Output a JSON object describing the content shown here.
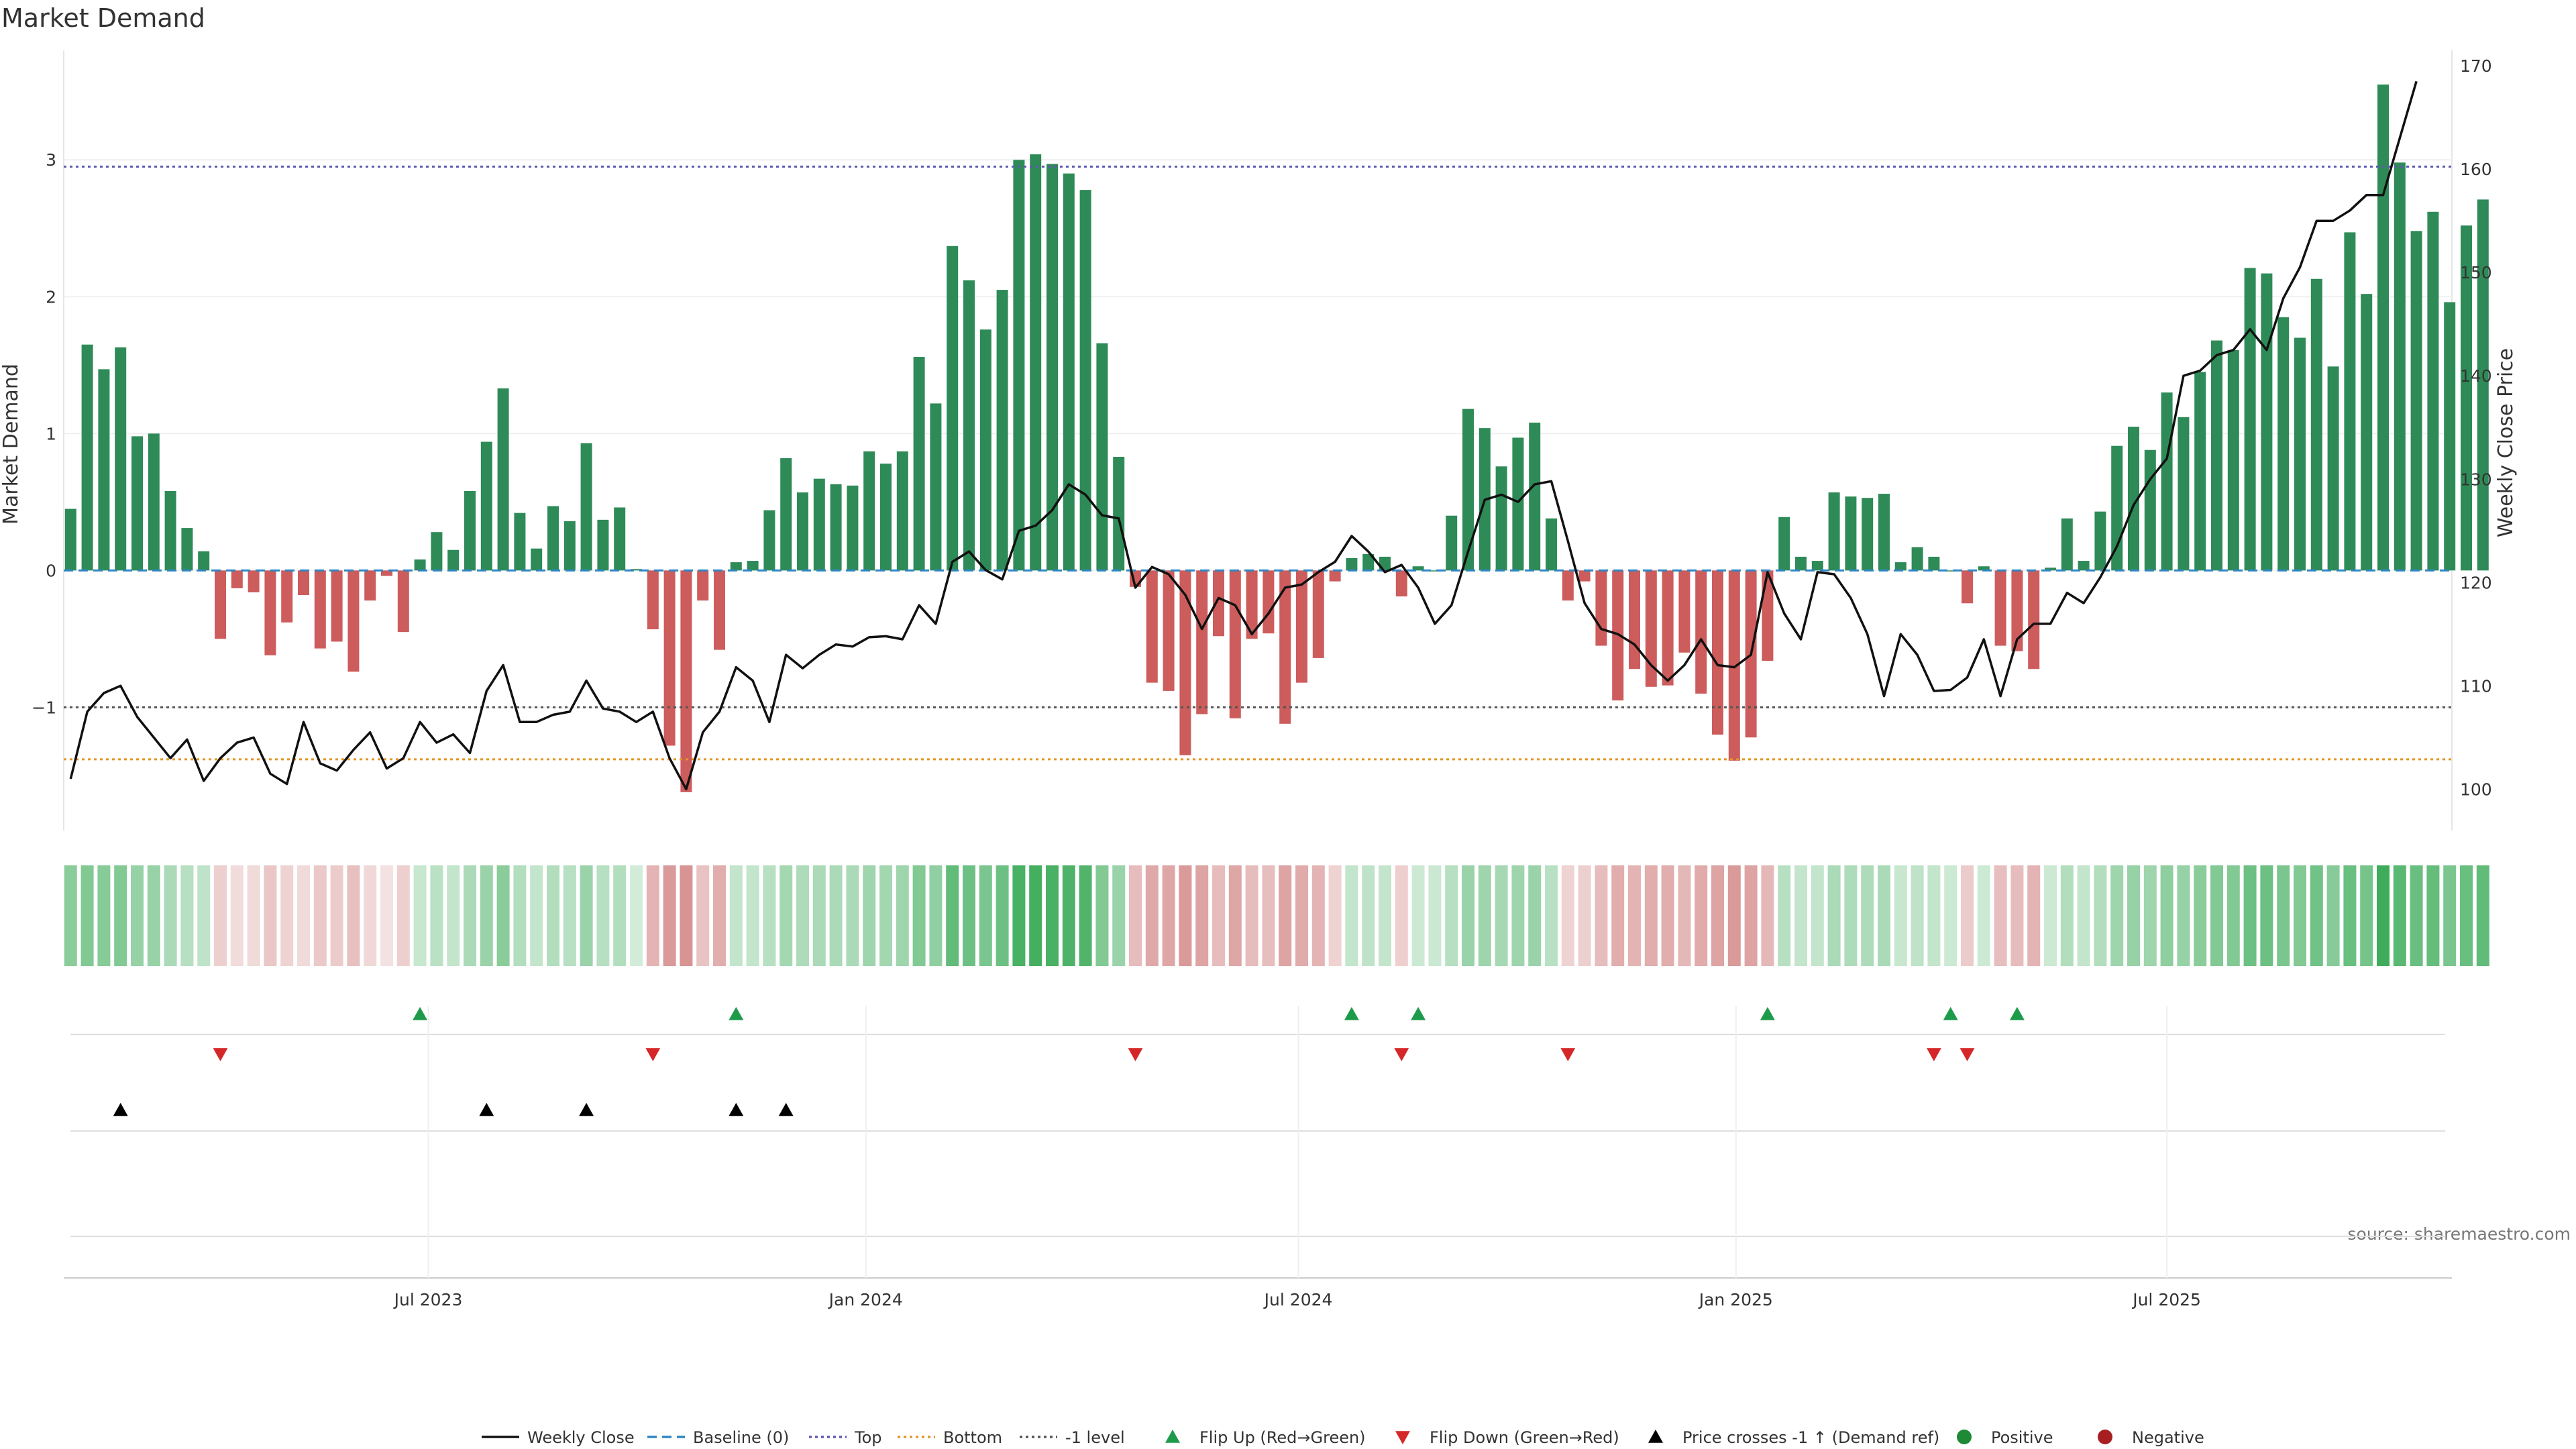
{
  "chart_data": {
    "type": "bar",
    "title": "Market Demand",
    "ylabel_left": "Market Demand",
    "ylabel_right": "Weekly Close Price",
    "source": "source: sharemaestro.com",
    "ylim_left": [
      -1.9,
      3.8
    ],
    "ylim_right": [
      96,
      171.5
    ],
    "yticks_left": [
      {
        "value": -1,
        "label": "−1"
      },
      {
        "value": 0,
        "label": "0"
      },
      {
        "value": 1,
        "label": "1"
      },
      {
        "value": 2,
        "label": "2"
      },
      {
        "value": 3,
        "label": "3"
      }
    ],
    "yticks_right": [
      {
        "value": 100,
        "label": "100"
      },
      {
        "value": 110,
        "label": "110"
      },
      {
        "value": 120,
        "label": "120"
      },
      {
        "value": 130,
        "label": "130"
      },
      {
        "value": 140,
        "label": "140"
      },
      {
        "value": 150,
        "label": "150"
      },
      {
        "value": 160,
        "label": "160"
      },
      {
        "value": 170,
        "label": "170"
      }
    ],
    "x_ticks": [
      {
        "week": 21.5,
        "label": "Jul 2023"
      },
      {
        "week": 47.8,
        "label": "Jan 2024"
      },
      {
        "week": 73.8,
        "label": "Jul 2024"
      },
      {
        "week": 100.1,
        "label": "Jan 2025"
      },
      {
        "week": 126.0,
        "label": "Jul 2025"
      }
    ],
    "levels": {
      "top": 2.95,
      "minus_one": -1.0,
      "bottom": -1.38,
      "baseline": 0
    },
    "demand": [
      0.45,
      1.65,
      1.47,
      1.63,
      0.98,
      1.0,
      0.58,
      0.31,
      0.14,
      -0.5,
      -0.13,
      -0.16,
      -0.62,
      -0.38,
      -0.18,
      -0.57,
      -0.52,
      -0.74,
      -0.22,
      -0.04,
      -0.45,
      0.08,
      0.28,
      0.15,
      0.58,
      0.94,
      1.33,
      0.42,
      0.16,
      0.47,
      0.36,
      0.93,
      0.37,
      0.46,
      0.01,
      -0.43,
      -1.28,
      -1.62,
      -0.22,
      -0.58,
      0.06,
      0.07,
      0.44,
      0.82,
      0.57,
      0.67,
      0.63,
      0.62,
      0.87,
      0.78,
      0.87,
      1.56,
      1.22,
      2.37,
      2.12,
      1.76,
      2.05,
      3.0,
      3.04,
      2.97,
      2.9,
      2.78,
      1.66,
      0.83,
      -0.12,
      -0.82,
      -0.88,
      -1.35,
      -1.05,
      -0.48,
      -1.08,
      -0.5,
      -0.46,
      -1.12,
      -0.82,
      -0.64,
      -0.08,
      0.09,
      0.12,
      0.1,
      -0.19,
      0.03,
      0.0,
      0.4,
      1.18,
      1.04,
      0.76,
      0.97,
      1.08,
      0.38,
      -0.22,
      -0.08,
      -0.55,
      -0.95,
      -0.72,
      -0.85,
      -0.84,
      -0.6,
      -0.9,
      -1.2,
      -1.39,
      -1.22,
      -0.66,
      0.39,
      0.1,
      0.07,
      0.57,
      0.54,
      0.53,
      0.56,
      0.06,
      0.17,
      0.1,
      0.0,
      -0.24,
      0.03,
      -0.55,
      -0.59,
      -0.72,
      0.02,
      0.38,
      0.07,
      0.43,
      0.91,
      1.05,
      0.88,
      1.3,
      1.12,
      1.45,
      1.68,
      1.61,
      2.21,
      2.17,
      1.85,
      1.7,
      2.13,
      1.49,
      2.47,
      2.02,
      3.55,
      2.98,
      2.48,
      2.62,
      1.96,
      2.52,
      2.71
    ],
    "strip_alpha": [
      0.58,
      0.62,
      0.6,
      0.62,
      0.52,
      0.52,
      0.42,
      0.36,
      0.32,
      0.32,
      0.24,
      0.25,
      0.38,
      0.3,
      0.25,
      0.36,
      0.35,
      0.42,
      0.26,
      0.2,
      0.32,
      0.28,
      0.34,
      0.3,
      0.42,
      0.5,
      0.58,
      0.38,
      0.3,
      0.38,
      0.36,
      0.5,
      0.36,
      0.38,
      0.22,
      0.5,
      0.68,
      0.72,
      0.4,
      0.55,
      0.3,
      0.3,
      0.36,
      0.45,
      0.4,
      0.42,
      0.42,
      0.42,
      0.48,
      0.46,
      0.48,
      0.62,
      0.55,
      0.78,
      0.72,
      0.66,
      0.72,
      0.9,
      0.92,
      0.9,
      0.88,
      0.86,
      0.62,
      0.5,
      0.45,
      0.58,
      0.6,
      0.68,
      0.62,
      0.45,
      0.6,
      0.45,
      0.44,
      0.62,
      0.56,
      0.5,
      0.3,
      0.3,
      0.32,
      0.3,
      0.32,
      0.25,
      0.26,
      0.36,
      0.5,
      0.48,
      0.44,
      0.48,
      0.5,
      0.35,
      0.3,
      0.32,
      0.45,
      0.55,
      0.5,
      0.55,
      0.55,
      0.48,
      0.56,
      0.62,
      0.68,
      0.62,
      0.48,
      0.36,
      0.3,
      0.3,
      0.42,
      0.4,
      0.4,
      0.42,
      0.28,
      0.32,
      0.3,
      0.25,
      0.35,
      0.25,
      0.44,
      0.45,
      0.5,
      0.25,
      0.38,
      0.3,
      0.38,
      0.48,
      0.52,
      0.48,
      0.56,
      0.52,
      0.58,
      0.62,
      0.62,
      0.72,
      0.72,
      0.66,
      0.62,
      0.7,
      0.6,
      0.74,
      0.68,
      0.95,
      0.82,
      0.74,
      0.76,
      0.66,
      0.74,
      0.78
    ],
    "price": [
      101.0,
      107.5,
      109.3,
      110.0,
      107.0,
      105.0,
      103.0,
      104.8,
      100.8,
      103.0,
      104.5,
      105.0,
      101.5,
      100.5,
      106.5,
      102.5,
      101.8,
      103.8,
      105.5,
      102.0,
      103.0,
      106.5,
      104.5,
      105.3,
      103.5,
      109.5,
      112.0,
      106.5,
      106.5,
      107.2,
      107.5,
      110.5,
      107.8,
      107.5,
      106.5,
      107.5,
      103.0,
      100.0,
      105.5,
      107.5,
      111.8,
      110.5,
      106.5,
      113.0,
      111.7,
      113.0,
      114.0,
      113.8,
      114.7,
      114.8,
      114.5,
      117.8,
      116.0,
      122.0,
      123.0,
      121.2,
      120.3,
      125.0,
      125.5,
      127.0,
      129.5,
      128.5,
      126.5,
      126.2,
      119.5,
      121.5,
      120.8,
      118.8,
      115.5,
      118.5,
      117.8,
      115.0,
      117.0,
      119.5,
      119.8,
      121.0,
      122.0,
      124.5,
      123.0,
      121.0,
      121.7,
      119.5,
      116.0,
      117.8,
      123.0,
      128.0,
      128.5,
      127.8,
      129.5,
      129.8,
      124.0,
      118.0,
      115.5,
      115.0,
      114.0,
      112.0,
      110.5,
      112.0,
      114.5,
      112.0,
      111.8,
      113.0,
      121.0,
      117.0,
      114.5,
      121.0,
      120.8,
      118.5,
      115.0,
      109.0,
      115.0,
      113.0,
      109.5,
      109.6,
      110.8,
      114.5,
      109.0,
      114.5,
      116.0,
      116.0,
      119.0,
      118.0,
      120.5,
      123.5,
      127.5,
      130.0,
      132.0,
      140.0,
      140.5,
      142.0,
      142.5,
      144.5,
      142.5,
      147.5,
      150.5,
      155.0,
      155.0,
      156.0,
      157.5,
      157.5,
      163.0,
      168.5
    ],
    "flip_up_weeks": [
      21,
      40,
      77,
      81,
      102,
      113,
      117
    ],
    "flip_down_weeks": [
      9,
      35,
      64,
      80,
      90,
      112,
      114
    ],
    "price_cross_weeks": [
      3,
      25,
      31,
      40,
      43
    ],
    "legend": [
      {
        "label": "Weekly Close",
        "kind": "line-solid",
        "color": "#111111"
      },
      {
        "label": "Baseline (0)",
        "kind": "line-dash",
        "color": "#2e86c1"
      },
      {
        "label": "Top",
        "kind": "line-dot",
        "color": "#5e5bb3"
      },
      {
        "label": "Bottom",
        "kind": "line-dot",
        "color": "#e39627"
      },
      {
        "label": "-1 level",
        "kind": "line-dot",
        "color": "#555555"
      },
      {
        "label": "Flip Up (Red→Green)",
        "kind": "tri-up",
        "color": "#1e9b4a"
      },
      {
        "label": "Flip Down (Green→Red)",
        "kind": "tri-down",
        "color": "#d62728"
      },
      {
        "label": "Price crosses -1 ↑ (Demand ref)",
        "kind": "tri-up",
        "color": "#000000"
      },
      {
        "label": "Positive",
        "kind": "dot",
        "color": "#1e8a35"
      },
      {
        "label": "Negative",
        "kind": "dot",
        "color": "#a81f22"
      }
    ],
    "colors": {
      "positive_bar": "#2e8b57",
      "negative_bar": "#cd5c5c",
      "strip_positive": "#35a853",
      "strip_negative": "#c96a6a",
      "flip_up": "#1e9b4a",
      "flip_down": "#d62728",
      "price_cross": "#000000",
      "price_line": "#111111",
      "top_line": "#5e5bb3",
      "bottom_line": "#e39627",
      "minus_one_line": "#555555",
      "baseline": "#2e86c1"
    }
  }
}
